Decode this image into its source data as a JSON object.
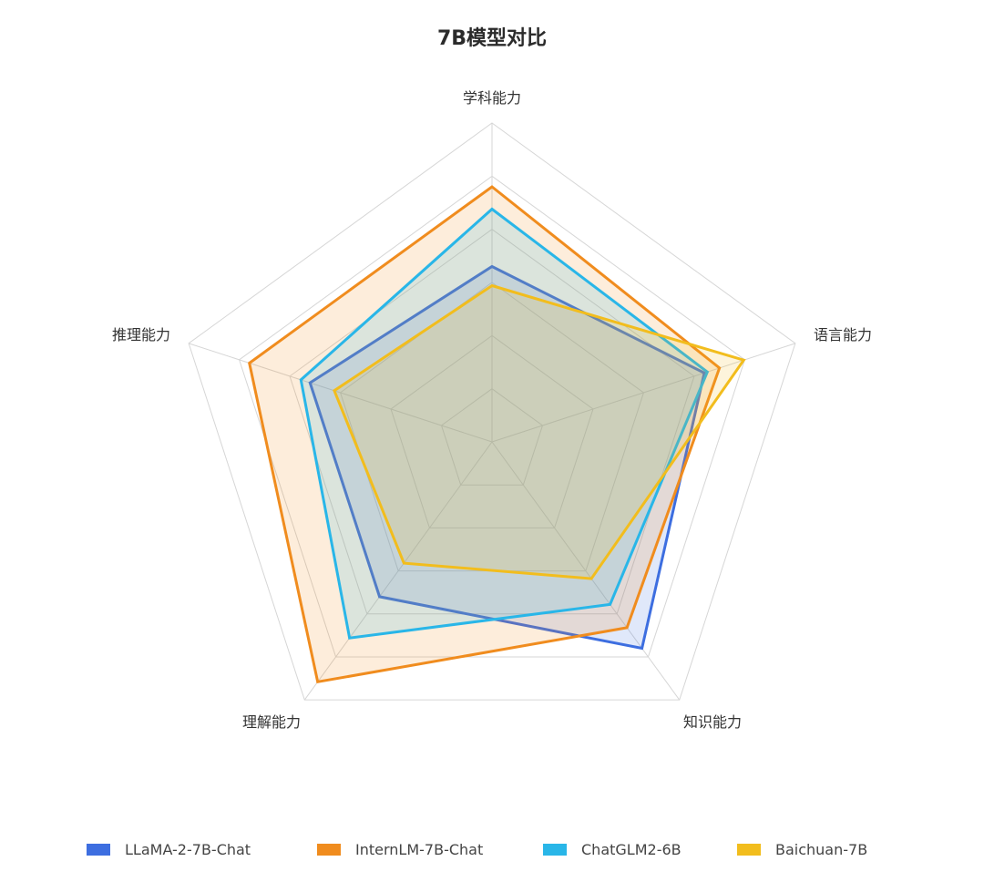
{
  "chart_data": {
    "type": "radar",
    "title": "7B模型对比",
    "axes": [
      "学科能力",
      "语言能力",
      "知识能力",
      "理解能力",
      "推理能力"
    ],
    "range": [
      0,
      100
    ],
    "grid_levels": 6,
    "legend_position": "bottom",
    "series": [
      {
        "name": "LLaMA-2-7B-Chat",
        "color": "#3d6ee0",
        "values": [
          55,
          70,
          80,
          60,
          60
        ]
      },
      {
        "name": "InternLM-7B-Chat",
        "color": "#f08c1e",
        "values": [
          80,
          75,
          72,
          93,
          80
        ]
      },
      {
        "name": "ChatGLM2-6B",
        "color": "#29b6e8",
        "values": [
          73,
          71,
          63,
          76,
          63
        ]
      },
      {
        "name": "Baichuan-7B",
        "color": "#f2bd1d",
        "values": [
          49,
          83,
          53,
          47,
          52
        ]
      }
    ]
  }
}
